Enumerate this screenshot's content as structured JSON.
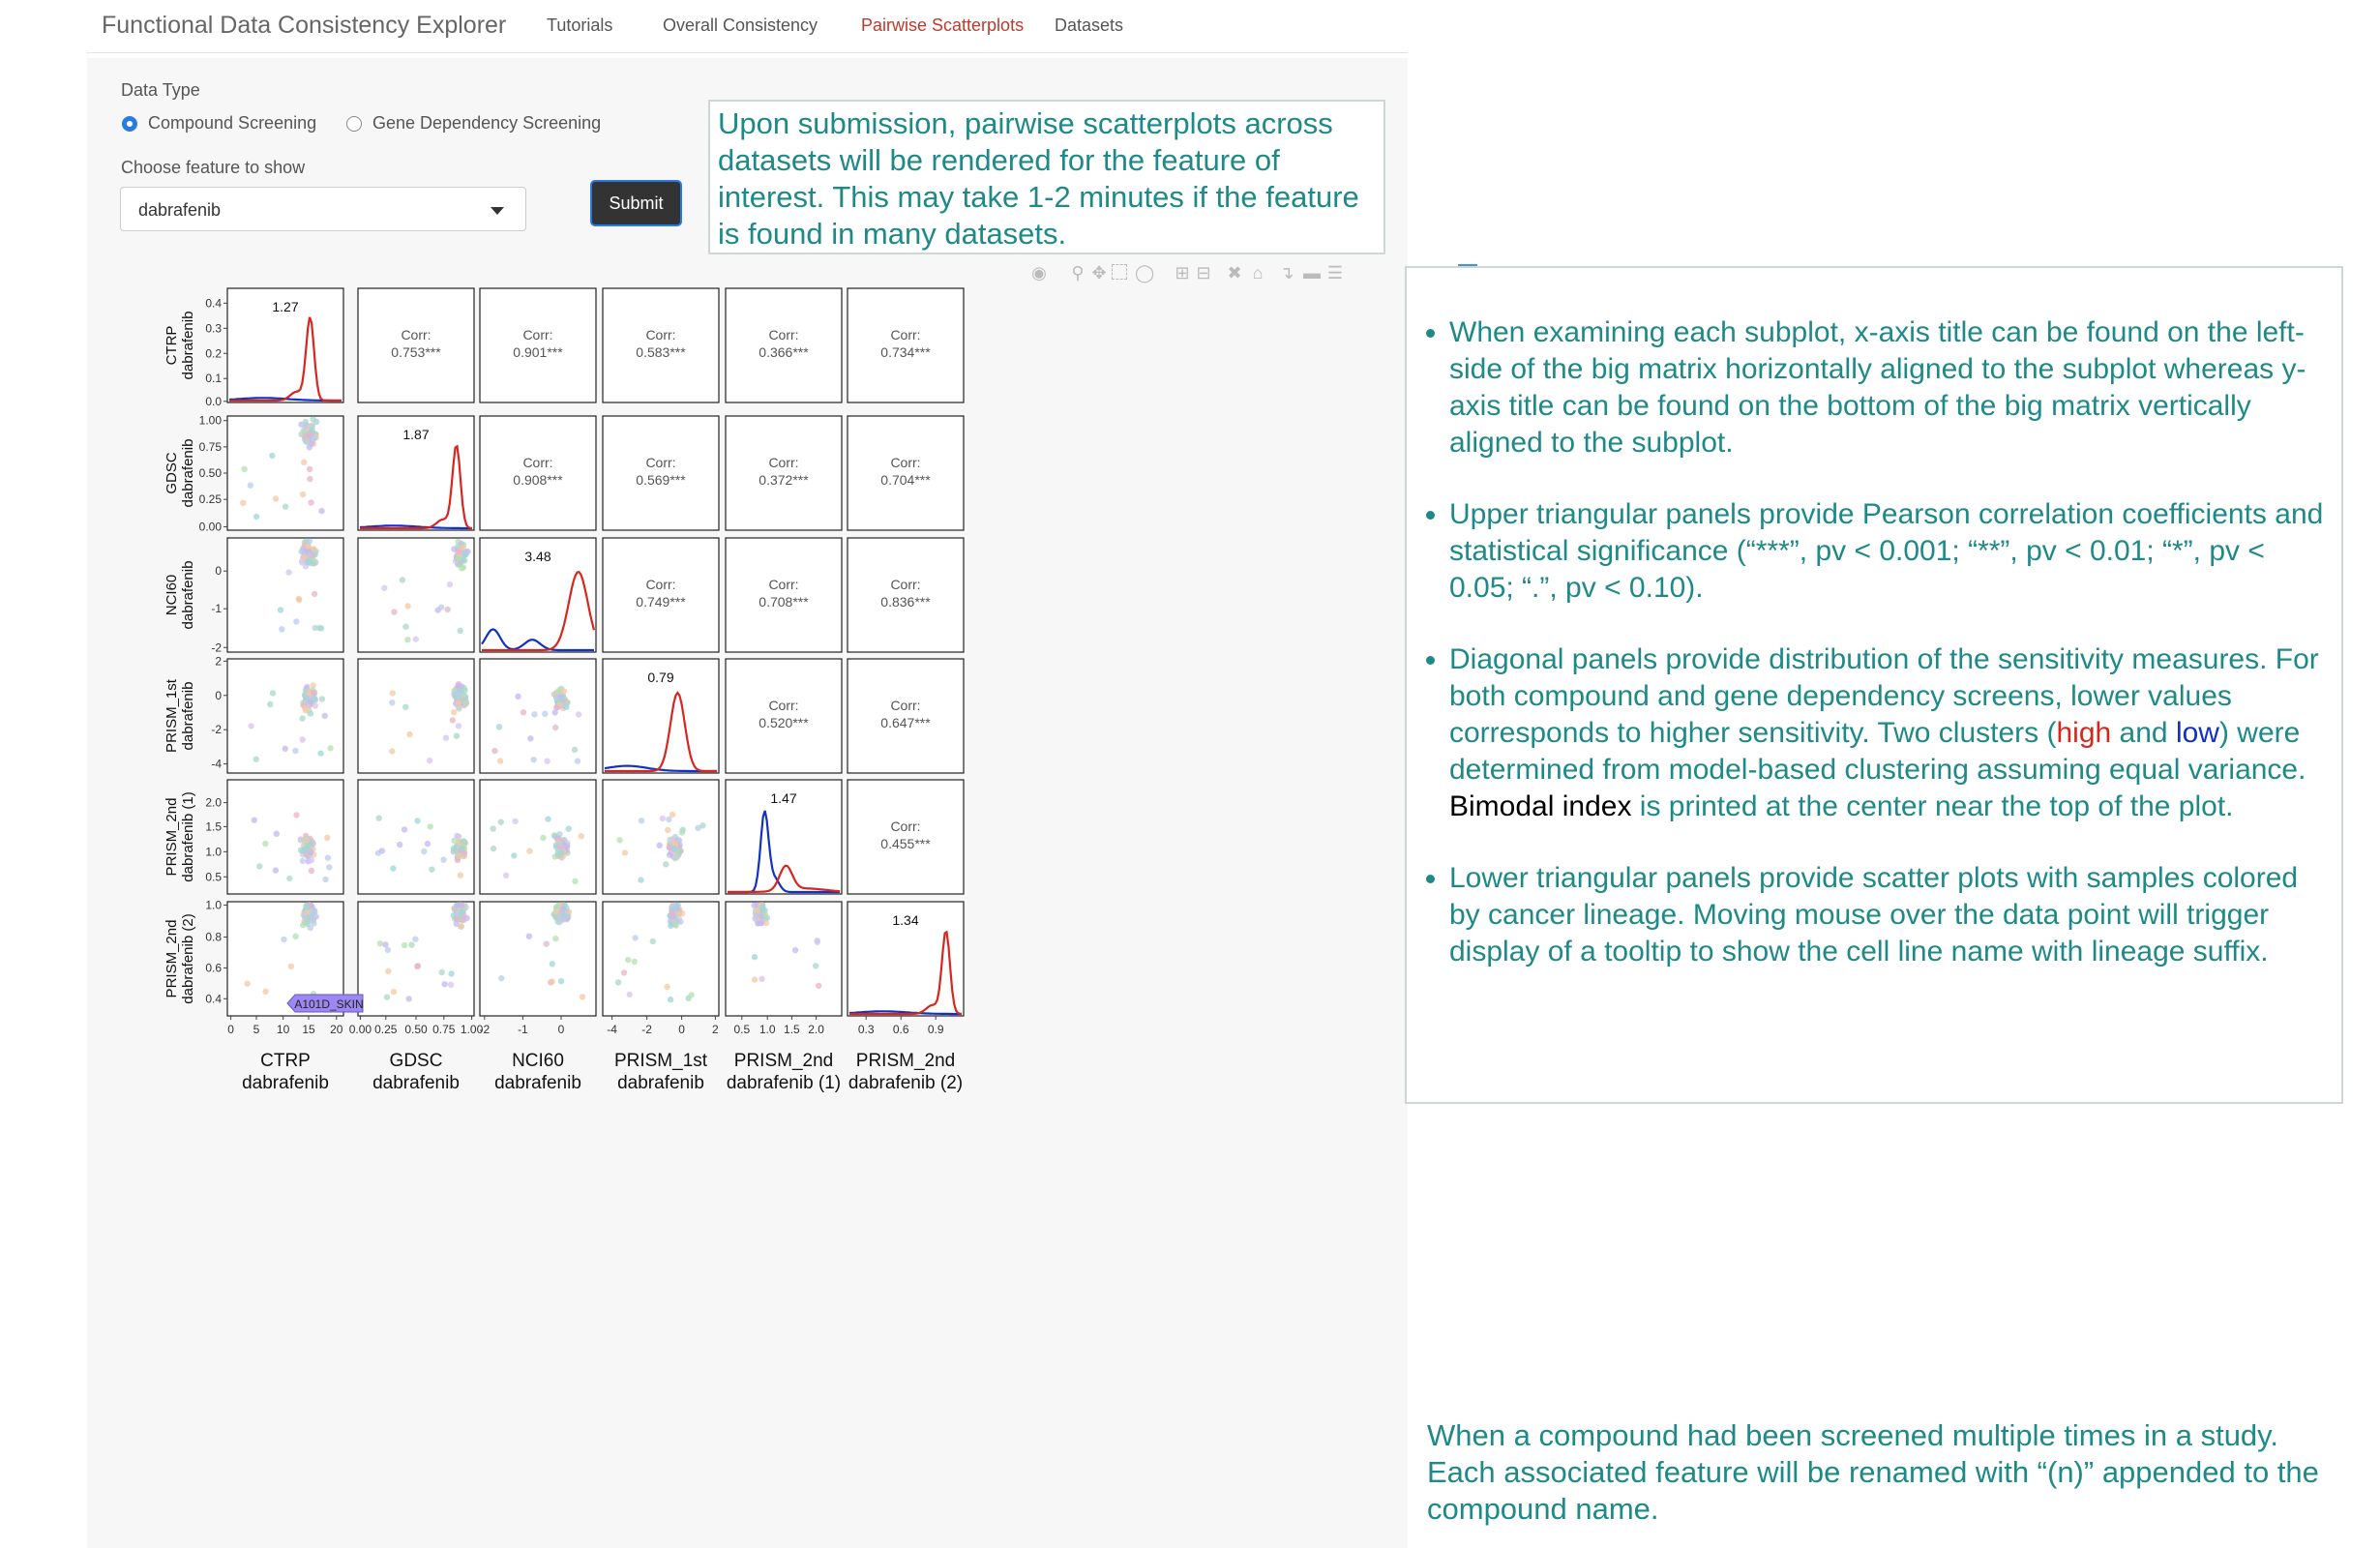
{
  "app": {
    "title": "Functional Data Consistency Explorer",
    "nav": [
      "Tutorials",
      "Overall Consistency",
      "Pairwise Scatterplots",
      "Datasets"
    ],
    "active_nav": "Pairwise Scatterplots",
    "accent": "#c0392b"
  },
  "form": {
    "data_type_label": "Data Type",
    "options": [
      "Compound Screening",
      "Gene Dependency Screening"
    ],
    "selected_option": "Compound Screening",
    "feature_label": "Choose feature to show",
    "feature_value": "dabrafenib",
    "submit_label": "Submit"
  },
  "callouts": {
    "submission": "Upon submission, pairwise scatterplots across datasets will be rendered for the feature of interest. This may take 1-2 minutes if the feature is found in many datasets.",
    "bullets": [
      "When examining each subplot, x-axis title can be found on the left-side of the big matrix horizontally aligned to the subplot whereas y-axis title can be found on the bottom of the big matrix vertically aligned to the subplot.",
      "Upper triangular panels provide Pearson correlation coefficients and statistical significance (“***”, pv < 0.001; “**”, pv < 0.01; “*”, pv < 0.05; “.”, pv < 0.10).",
      "Diagonal panels provide distribution of the sensitivity measures. For both compound and gene dependency screens, lower values corresponds to higher sensitivity. Two clusters (high and low) were determined from model-based clustering assuming equal variance. Bimodal index is printed at the center near the top of the plot.",
      "Lower triangular panels provide scatter plots with samples colored by cancer lineage. Moving mouse over the data point will trigger display of a tooltip to show the cell line name with lineage suffix."
    ],
    "bullet3_parts": {
      "a": "Diagonal panels provide distribution of the sensitivity measures. For both compound and gene dependency screens, lower values corresponds to higher sensitivity. Two clusters (",
      "high": "high",
      "b": " and ",
      "low": "low",
      "c": ") were determined from model-based clustering assuming equal variance. ",
      "bimodal": "Bimodal index",
      "d": " is printed at the center near the top of the plot."
    },
    "renamed_note": "When a compound had been screened multiple times in a study. Each associated feature will be renamed with “(n)” appended to the compound name."
  },
  "modebar_icons": [
    "camera-icon",
    "zoom-icon",
    "pan-icon",
    "box-select-icon",
    "lasso-icon",
    "zoom-in-icon",
    "zoom-out-icon",
    "autoscale-icon",
    "reset-axes-icon",
    "spike-lines-icon",
    "hover-closest-icon",
    "hover-compare-icon",
    "plotly-logo-icon"
  ],
  "chart_data": {
    "type": "scatter",
    "datasets": [
      "CTRP\ndabrafenib",
      "GDSC\ndabrafenib",
      "NCI60\ndabrafenib",
      "PRISM_1st\ndabrafenib",
      "PRISM_2nd\ndabrafenib (1)",
      "PRISM_2nd\ndabrafenib (2)"
    ],
    "row_labels": [
      [
        "CTRP",
        "dabrafenib"
      ],
      [
        "GDSC",
        "dabrafenib"
      ],
      [
        "NCI60",
        "dabrafenib"
      ],
      [
        "PRISM_1st",
        "dabrafenib"
      ],
      [
        "PRISM_2nd",
        "dabrafenib (1)"
      ],
      [
        "PRISM_2nd",
        "dabrafenib (2)"
      ]
    ],
    "col_labels": [
      [
        "CTRP",
        "dabrafenib"
      ],
      [
        "GDSC",
        "dabrafenib"
      ],
      [
        "NCI60",
        "dabrafenib"
      ],
      [
        "PRISM_1st",
        "dabrafenib"
      ],
      [
        "PRISM_2nd",
        "dabrafenib (1)"
      ],
      [
        "PRISM_2nd",
        "dabrafenib (2)"
      ]
    ],
    "bimodal_index": [
      "1.27",
      "1.87",
      "3.48",
      "0.79",
      "1.47",
      "1.34"
    ],
    "correlations": [
      {
        "row": 0,
        "col": 1,
        "label": "Corr:",
        "value": "0.753***"
      },
      {
        "row": 0,
        "col": 2,
        "label": "Corr:",
        "value": "0.901***"
      },
      {
        "row": 0,
        "col": 3,
        "label": "Corr:",
        "value": "0.583***"
      },
      {
        "row": 0,
        "col": 4,
        "label": "Corr:",
        "value": "0.366***"
      },
      {
        "row": 0,
        "col": 5,
        "label": "Corr:",
        "value": "0.734***"
      },
      {
        "row": 1,
        "col": 2,
        "label": "Corr:",
        "value": "0.908***"
      },
      {
        "row": 1,
        "col": 3,
        "label": "Corr:",
        "value": "0.569***"
      },
      {
        "row": 1,
        "col": 4,
        "label": "Corr:",
        "value": "0.372***"
      },
      {
        "row": 1,
        "col": 5,
        "label": "Corr:",
        "value": "0.704***"
      },
      {
        "row": 2,
        "col": 3,
        "label": "Corr:",
        "value": "0.749***"
      },
      {
        "row": 2,
        "col": 4,
        "label": "Corr:",
        "value": "0.708***"
      },
      {
        "row": 2,
        "col": 5,
        "label": "Corr:",
        "value": "0.836***"
      },
      {
        "row": 3,
        "col": 4,
        "label": "Corr:",
        "value": "0.520***"
      },
      {
        "row": 3,
        "col": 5,
        "label": "Corr:",
        "value": "0.647***"
      },
      {
        "row": 4,
        "col": 5,
        "label": "Corr:",
        "value": "0.455***"
      }
    ],
    "y_ticks": [
      [
        "0.4",
        "0.3",
        "0.2",
        "0.1",
        "0.0"
      ],
      [
        "1.00",
        "0.75",
        "0.50",
        "0.25",
        "0.00"
      ],
      [
        "0",
        "-1",
        "-2"
      ],
      [
        "2",
        "0",
        "-2",
        "-4"
      ],
      [
        "2.0",
        "1.5",
        "1.0",
        "0.5"
      ],
      [
        "1.0",
        "0.8",
        "0.6",
        "0.4"
      ]
    ],
    "y_tick_fracs": [
      [
        0.13,
        0.35,
        0.57,
        0.79,
        0.99
      ],
      [
        0.04,
        0.27,
        0.5,
        0.73,
        0.97
      ],
      [
        0.29,
        0.62,
        0.96
      ],
      [
        0.02,
        0.32,
        0.62,
        0.92
      ],
      [
        0.2,
        0.41,
        0.63,
        0.85
      ],
      [
        0.03,
        0.31,
        0.58,
        0.85
      ]
    ],
    "x_ticks": [
      [
        "0",
        "5",
        "10",
        "15",
        "20"
      ],
      [
        "0.00",
        "0.25",
        "0.50",
        "0.75",
        "1.00"
      ],
      [
        "-2",
        "-1",
        "0"
      ],
      [
        "-4",
        "-2",
        "0",
        "2"
      ],
      [
        "0.5",
        "1.0",
        "1.5",
        "2.0"
      ],
      [
        "0.3",
        "0.6",
        "0.9"
      ]
    ],
    "x_tick_fracs": [
      [
        0.03,
        0.25,
        0.48,
        0.7,
        0.94
      ],
      [
        0.02,
        0.24,
        0.5,
        0.74,
        0.98
      ],
      [
        0.04,
        0.37,
        0.7
      ],
      [
        0.08,
        0.38,
        0.68,
        0.97
      ],
      [
        0.14,
        0.36,
        0.57,
        0.78
      ],
      [
        0.16,
        0.46,
        0.76
      ]
    ],
    "tooltip": "A101D_SKIN",
    "colors": {
      "high": "#d7261e",
      "low": "#1030c8",
      "text_accent": "#1e8a87"
    }
  }
}
